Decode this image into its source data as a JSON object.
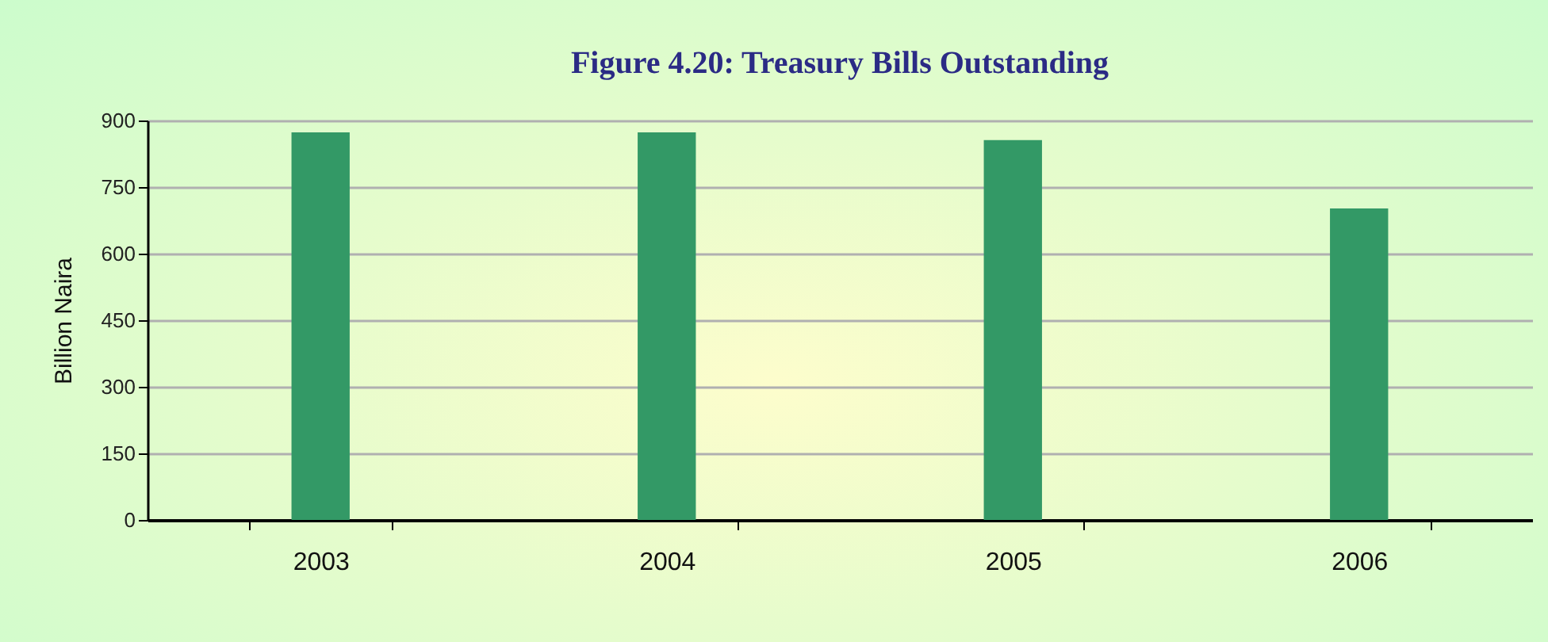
{
  "chart_data": {
    "type": "bar",
    "title": "Figure 4.20: Treasury Bills Outstanding",
    "ylabel": "Billion Naira",
    "categories": [
      "2003",
      "2004",
      "2005",
      "2006"
    ],
    "values": [
      873,
      873,
      856,
      702
    ],
    "color": "#339966",
    "ylim": [
      0,
      900
    ],
    "yticks": [
      0,
      150,
      300,
      450,
      600,
      750,
      900
    ],
    "grid": "y"
  }
}
